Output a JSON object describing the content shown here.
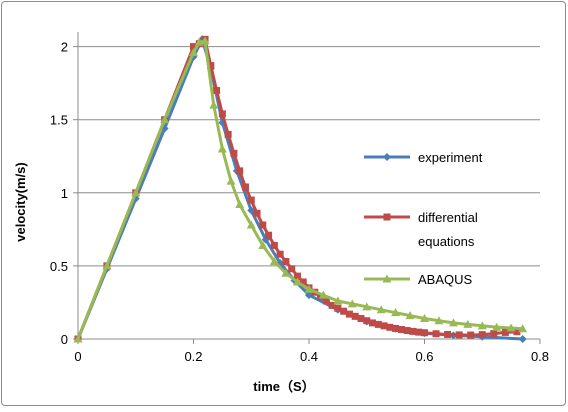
{
  "chart_data": {
    "type": "line",
    "title": "",
    "xlabel": "time（S）",
    "ylabel": "velocity(m/s)",
    "xlim": [
      0,
      0.8
    ],
    "ylim": [
      0,
      2.1
    ],
    "x_ticks": [
      "0",
      "0.2",
      "0.4",
      "0.6",
      "0.8"
    ],
    "y_ticks": [
      "0",
      "0.5",
      "1",
      "1.5",
      "2"
    ],
    "grid": "horizontal",
    "legend_position": "right",
    "series": [
      {
        "name": "experiment",
        "color": "#4a7ebb",
        "marker": "diamond",
        "x": [
          0,
          0.05,
          0.1,
          0.15,
          0.2,
          0.215,
          0.23,
          0.25,
          0.275,
          0.3,
          0.325,
          0.35,
          0.375,
          0.4,
          0.45,
          0.5,
          0.55,
          0.6,
          0.65,
          0.7,
          0.77
        ],
        "y": [
          0,
          0.48,
          0.96,
          1.44,
          1.93,
          2.05,
          1.85,
          1.48,
          1.15,
          0.88,
          0.68,
          0.52,
          0.4,
          0.3,
          0.2,
          0.12,
          0.07,
          0.04,
          0.025,
          0.015,
          0.0
        ]
      },
      {
        "name": "differential equations",
        "color": "#be4b48",
        "marker": "square",
        "x": [
          0,
          0.05,
          0.1,
          0.15,
          0.2,
          0.21,
          0.22,
          0.23,
          0.24,
          0.25,
          0.26,
          0.27,
          0.28,
          0.29,
          0.3,
          0.31,
          0.32,
          0.33,
          0.34,
          0.35,
          0.36,
          0.37,
          0.38,
          0.39,
          0.4,
          0.41,
          0.42,
          0.43,
          0.44,
          0.45,
          0.46,
          0.47,
          0.48,
          0.49,
          0.5,
          0.51,
          0.52,
          0.53,
          0.54,
          0.55,
          0.56,
          0.57,
          0.58,
          0.59,
          0.6,
          0.62,
          0.64,
          0.66,
          0.68,
          0.7,
          0.72,
          0.74,
          0.76
        ],
        "y": [
          0,
          0.5,
          1.0,
          1.5,
          2.0,
          2.02,
          2.05,
          1.87,
          1.7,
          1.54,
          1.4,
          1.27,
          1.15,
          1.04,
          0.95,
          0.86,
          0.78,
          0.71,
          0.64,
          0.58,
          0.53,
          0.48,
          0.43,
          0.39,
          0.35,
          0.32,
          0.29,
          0.26,
          0.23,
          0.21,
          0.19,
          0.17,
          0.155,
          0.14,
          0.125,
          0.11,
          0.1,
          0.09,
          0.08,
          0.072,
          0.065,
          0.058,
          0.052,
          0.047,
          0.043,
          0.036,
          0.031,
          0.028,
          0.027,
          0.03,
          0.037,
          0.045,
          0.05
        ]
      },
      {
        "name": "ABAQUS",
        "color": "#98b954",
        "marker": "triangle",
        "x": [
          0,
          0.05,
          0.1,
          0.15,
          0.2,
          0.21,
          0.22,
          0.235,
          0.25,
          0.265,
          0.28,
          0.3,
          0.32,
          0.34,
          0.36,
          0.38,
          0.4,
          0.425,
          0.45,
          0.475,
          0.5,
          0.525,
          0.55,
          0.575,
          0.6,
          0.625,
          0.65,
          0.675,
          0.7,
          0.725,
          0.75,
          0.77
        ],
        "y": [
          0,
          0.5,
          1.0,
          1.5,
          1.96,
          2.03,
          2.04,
          1.6,
          1.3,
          1.08,
          0.92,
          0.78,
          0.64,
          0.53,
          0.45,
          0.39,
          0.34,
          0.3,
          0.26,
          0.24,
          0.22,
          0.2,
          0.18,
          0.16,
          0.14,
          0.125,
          0.11,
          0.1,
          0.09,
          0.08,
          0.075,
          0.07
        ]
      }
    ]
  }
}
